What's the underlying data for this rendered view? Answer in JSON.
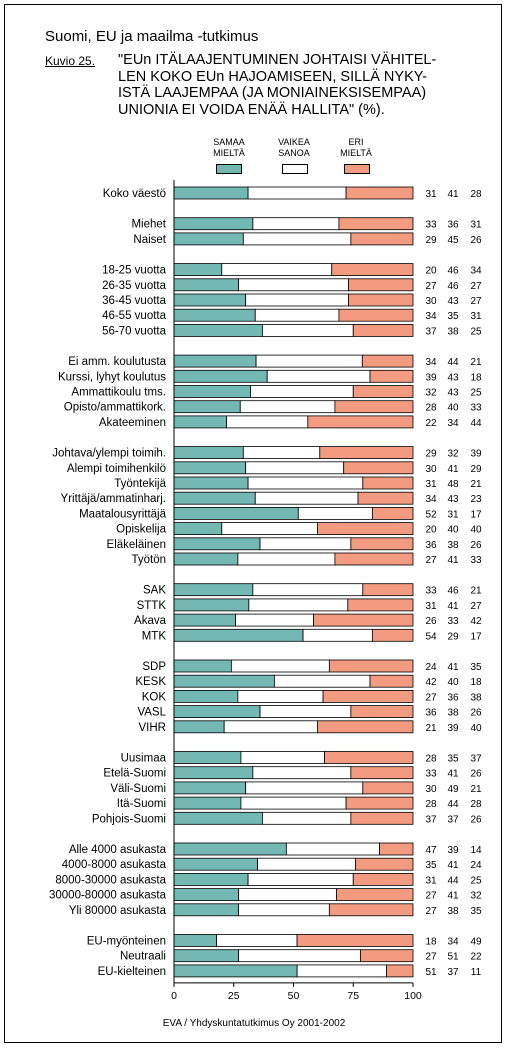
{
  "header": {
    "title": "Suomi, EU ja maailma -tutkimus",
    "figure_label": "Kuvio 25.",
    "question": "\"EUn ITÄLAAJENTUMINEN JOHTAISI VÄHITEL-\nLEN KOKO EUn HAJOAMISEEN, SILLÄ NYKY-\nISTÄ LAAJEMPAA (JA MONIAINEKSISEMPAA)\nUNIONIA EI VOIDA ENÄÄ HALLITA\" (%)."
  },
  "legend": [
    {
      "label": "SAMAA\nMIELTÄ",
      "color": "#74b8b4"
    },
    {
      "label": "VAIKEA\nSANOA",
      "color": "#ffffff"
    },
    {
      "label": "ERI\nMIELTÄ",
      "color": "#f39b80"
    }
  ],
  "footer": {
    "source": "EVA / Yhdyskuntatutkimus Oy 2001-2002"
  },
  "chart_data": {
    "type": "bar",
    "orientation": "horizontal",
    "stacked": true,
    "xlim": [
      0,
      100
    ],
    "xticks": [
      "0",
      "25",
      "50",
      "75",
      "100"
    ],
    "series_names": [
      "SAMAA MIELTÄ",
      "VAIKEA SANOA",
      "ERI MIELTÄ"
    ],
    "colors": [
      "#74b8b4",
      "#ffffff",
      "#f39b80"
    ],
    "groups": [
      {
        "rows": [
          {
            "label": "Koko väestö",
            "values": [
              31,
              41,
              28
            ]
          }
        ]
      },
      {
        "rows": [
          {
            "label": "Miehet",
            "values": [
              33,
              36,
              31
            ]
          },
          {
            "label": "Naiset",
            "values": [
              29,
              45,
              26
            ]
          }
        ]
      },
      {
        "rows": [
          {
            "label": "18-25 vuotta",
            "values": [
              20,
              46,
              34
            ]
          },
          {
            "label": "26-35 vuotta",
            "values": [
              27,
              46,
              27
            ]
          },
          {
            "label": "36-45 vuotta",
            "values": [
              30,
              43,
              27
            ]
          },
          {
            "label": "46-55 vuotta",
            "values": [
              34,
              35,
              31
            ]
          },
          {
            "label": "56-70 vuotta",
            "values": [
              37,
              38,
              25
            ]
          }
        ]
      },
      {
        "rows": [
          {
            "label": "Ei amm. koulutusta",
            "values": [
              34,
              44,
              21
            ]
          },
          {
            "label": "Kurssi, lyhyt koulutus",
            "values": [
              39,
              43,
              18
            ]
          },
          {
            "label": "Ammattikoulu tms.",
            "values": [
              32,
              43,
              25
            ]
          },
          {
            "label": "Opisto/ammattikork.",
            "values": [
              28,
              40,
              33
            ]
          },
          {
            "label": "Akateeminen",
            "values": [
              22,
              34,
              44
            ]
          }
        ]
      },
      {
        "rows": [
          {
            "label": "Johtava/ylempi toimih.",
            "values": [
              29,
              32,
              39
            ]
          },
          {
            "label": "Alempi toimihenkilö",
            "values": [
              30,
              41,
              29
            ]
          },
          {
            "label": "Työntekijä",
            "values": [
              31,
              48,
              21
            ]
          },
          {
            "label": "Yrittäjä/ammatinharj.",
            "values": [
              34,
              43,
              23
            ]
          },
          {
            "label": "Maatalousyrittäjä",
            "values": [
              52,
              31,
              17
            ]
          },
          {
            "label": "Opiskelija",
            "values": [
              20,
              40,
              40
            ]
          },
          {
            "label": "Eläkeläinen",
            "values": [
              36,
              38,
              26
            ]
          },
          {
            "label": "Työtön",
            "values": [
              27,
              41,
              33
            ]
          }
        ]
      },
      {
        "rows": [
          {
            "label": "SAK",
            "values": [
              33,
              46,
              21
            ]
          },
          {
            "label": "STTK",
            "values": [
              31,
              41,
              27
            ]
          },
          {
            "label": "Akava",
            "values": [
              26,
              33,
              42
            ]
          },
          {
            "label": "MTK",
            "values": [
              54,
              29,
              17
            ]
          }
        ]
      },
      {
        "rows": [
          {
            "label": "SDP",
            "values": [
              24,
              41,
              35
            ]
          },
          {
            "label": "KESK",
            "values": [
              42,
              40,
              18
            ]
          },
          {
            "label": "KOK",
            "values": [
              27,
              36,
              38
            ]
          },
          {
            "label": "VASL",
            "values": [
              36,
              38,
              26
            ]
          },
          {
            "label": "VIHR",
            "values": [
              21,
              39,
              40
            ]
          }
        ]
      },
      {
        "rows": [
          {
            "label": "Uusimaa",
            "values": [
              28,
              35,
              37
            ]
          },
          {
            "label": "Etelä-Suomi",
            "values": [
              33,
              41,
              26
            ]
          },
          {
            "label": "Väli-Suomi",
            "values": [
              30,
              49,
              21
            ]
          },
          {
            "label": "Itä-Suomi",
            "values": [
              28,
              44,
              28
            ]
          },
          {
            "label": "Pohjois-Suomi",
            "values": [
              37,
              37,
              26
            ]
          }
        ]
      },
      {
        "rows": [
          {
            "label": "Alle 4000 asukasta",
            "values": [
              47,
              39,
              14
            ]
          },
          {
            "label": "4000-8000 asukasta",
            "values": [
              35,
              41,
              24
            ]
          },
          {
            "label": "8000-30000 asukasta",
            "values": [
              31,
              44,
              25
            ]
          },
          {
            "label": "30000-80000 asukasta",
            "values": [
              27,
              41,
              32
            ]
          },
          {
            "label": "Yli 80000 asukasta",
            "values": [
              27,
              38,
              35
            ]
          }
        ]
      },
      {
        "rows": [
          {
            "label": "EU-myönteinen",
            "values": [
              18,
              34,
              49
            ]
          },
          {
            "label": "Neutraali",
            "values": [
              27,
              51,
              22
            ]
          },
          {
            "label": "EU-kielteinen",
            "values": [
              51,
              37,
              11
            ]
          }
        ]
      }
    ]
  }
}
